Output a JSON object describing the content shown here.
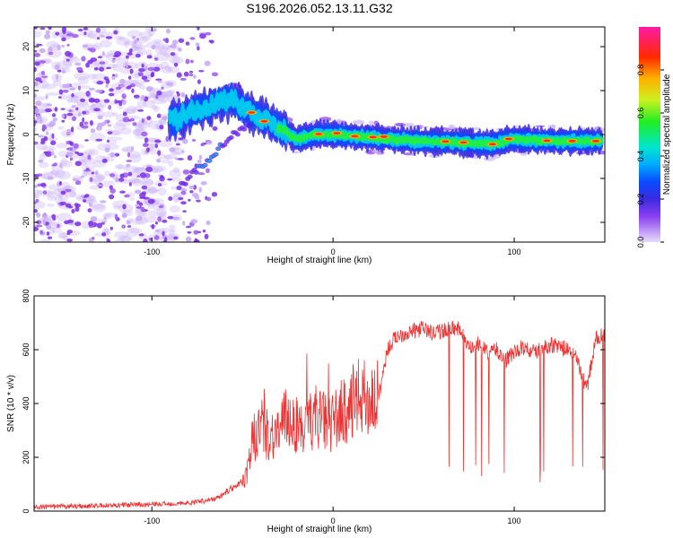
{
  "title": "S196.2026.052.13.11.G32",
  "chart_data": [
    {
      "type": "heatmap",
      "xlabel": "Height of straight line (km)",
      "ylabel": "Frequency (Hz)",
      "xlim": [
        -165,
        150
      ],
      "ylim": [
        -24.5,
        24.5
      ],
      "xticks": [
        -100,
        0,
        100
      ],
      "yticks": [
        -20,
        -10,
        0,
        10,
        20
      ],
      "colorbar": {
        "label": "Normalized spectral amplitude",
        "range": [
          0,
          1
        ],
        "ticks": [
          "0.0",
          "0.2",
          "0.4",
          "0.6",
          "0.8"
        ],
        "tick_values": [
          0,
          0.2,
          0.4,
          0.6,
          0.8
        ]
      },
      "trace": {
        "main_ridge": [
          [
            -90,
            3
          ],
          [
            -78,
            5
          ],
          [
            -65,
            7
          ],
          [
            -55,
            8
          ],
          [
            -45,
            5
          ],
          [
            -35,
            3
          ],
          [
            -28,
            1
          ],
          [
            -20,
            -1
          ],
          [
            -10,
            0
          ],
          [
            0,
            0
          ],
          [
            15,
            -0.5
          ],
          [
            30,
            -1
          ],
          [
            50,
            -1.5
          ],
          [
            70,
            -1.8
          ],
          [
            88,
            -2.2
          ],
          [
            98,
            -1
          ],
          [
            110,
            -1.3
          ],
          [
            130,
            -1.5
          ],
          [
            148,
            -1.5
          ]
        ],
        "lower_branch": [
          [
            -85,
            -12
          ],
          [
            -75,
            -8
          ],
          [
            -65,
            -4
          ],
          [
            -55,
            0
          ],
          [
            -45,
            3
          ]
        ]
      }
    },
    {
      "type": "line",
      "xlabel": "Height of straight line (km)",
      "ylabel": "SNR (10 * v/v)",
      "xlim": [
        -165,
        150
      ],
      "ylim": [
        0,
        800
      ],
      "xticks": [
        -100,
        0,
        100
      ],
      "yticks": [
        0,
        200,
        400,
        600,
        800
      ],
      "series": [
        {
          "name": "SNR",
          "color": "#ee3333",
          "x": [
            -165,
            -140,
            -120,
            -100,
            -80,
            -65,
            -55,
            -48,
            -45,
            -40,
            -35,
            -30,
            -25,
            -20,
            -15,
            -10,
            -5,
            0,
            5,
            10,
            15,
            20,
            25,
            30,
            35,
            40,
            45,
            50,
            55,
            60,
            65,
            70,
            75,
            80,
            85,
            90,
            95,
            100,
            105,
            110,
            115,
            120,
            125,
            130,
            135,
            140,
            145,
            150
          ],
          "values": [
            15,
            18,
            22,
            25,
            30,
            45,
            90,
            120,
            250,
            320,
            280,
            300,
            350,
            320,
            300,
            360,
            330,
            330,
            370,
            380,
            430,
            410,
            420,
            600,
            650,
            660,
            670,
            680,
            660,
            670,
            680,
            680,
            600,
            620,
            590,
            600,
            560,
            590,
            610,
            590,
            600,
            620,
            610,
            600,
            560,
            450,
            640,
            660
          ]
        }
      ]
    }
  ]
}
